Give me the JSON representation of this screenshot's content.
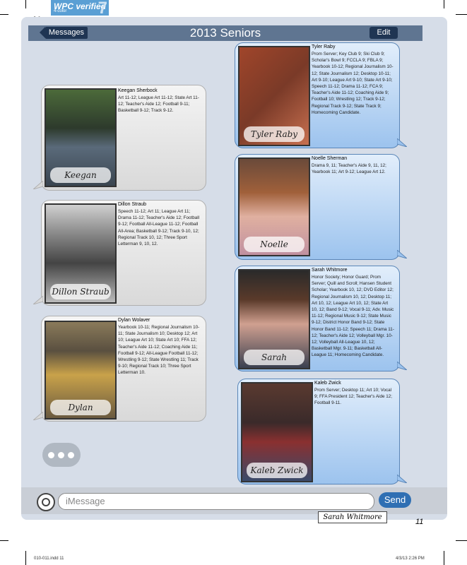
{
  "badge": {
    "line1": "WPC verified",
    "line2": "4-color",
    "number": "7"
  },
  "slug_letter": "W",
  "header": {
    "back_label": "Messages",
    "title": "2013 Seniors",
    "edit_label": "Edit"
  },
  "seniors": [
    {
      "name": "Keegan Sherbock",
      "signature": "Keegan Sherbock",
      "bubble": "gray",
      "details": "Art 11-12; League Art 11-12; State Art 11-12; Teacher's Aide 12; Football 9-11; Basketball 9-12; Track 9-12."
    },
    {
      "name": "Dillon Straub",
      "signature": "Dillon Straub",
      "bubble": "gray",
      "details": "Speech 11-12; Art 11; League Art 11; Drama 11-12; Teacher's Aide 12; Football 9-12; Football All-League 11-12; Football All-Area; Basketball 9-12; Track 9-10, 12; Regional Track 10, 12; Three Sport Letterman 9, 10, 12."
    },
    {
      "name": "Dylan Wolaver",
      "signature": "Dylan Wolaver",
      "bubble": "gray",
      "details": "Yearbook 10-11; Regional Journalism 10-11; State Journalism 10; Desktop 12; Art 10; League Art 10; State Art 10; FFA 12; Teacher's Aide 11-12; Coaching Aide 11; Football 9-12; All-League Football 11-12; Wrestling 9-12; State Wrestling 11; Track 9-10; Regional Track 10; Three Sport Letterman 10."
    },
    {
      "name": "Tyler Raby",
      "signature": "Tyler Raby",
      "bubble": "blue",
      "details": "Prom Server; Key Club 9; Ski Club 9; Scholar's Bowl 9; FCCLA 9; FBLA 9; Yearbook 10-12; Regional Journalism 10-12; State Journalism 12; Desktop 10-11; Art 9-10; League Art 9-10; State Art 9-10; Speech 11-12; Drama 11-12; FCA 9; Teacher's Aide 11-12; Coaching Aide 9; Football 10; Wrestling 12; Track 9-12; Regional Track 9-12; State Track 9; Homecoming Candidate."
    },
    {
      "name": "Noelle Sherman",
      "signature": "Noelle Sherman",
      "bubble": "blue",
      "details": "Drama 9, 11; Teacher's Aide 9, 11, 12; Yearbook 11; Art 9-12; League Art 12."
    },
    {
      "name": "Sarah Whitmore",
      "signature": "Sarah Whitmore",
      "bubble": "blue",
      "details": "Honor Society; Honor Guard; Prom Server; Quill and Scroll; Hansen Student Scholar; Yearbook 10, 12; DVD Editor 12; Regional Journalism 10, 12; Desktop 11; Art 10, 12; League Art 10, 12; State Art 10, 12; Band 9-12; Vocal 9-11; Adv. Music 11-12; Regional Music 9-12; State Music 9-12; District Honor Band 9-12; State Honor Band 11-12; Speech 11; Drama 11-12; Teacher's Aide 12; Volleyball Mgr. 10-12; Volleyball All-League 10, 12; Basketball Mgr. 9-11; Basketball All-League 11; Homecoming Candidate."
    },
    {
      "name": "Kaleb Zwick",
      "signature": "Kaleb Zwick",
      "bubble": "blue",
      "details": "Prom Server; Desktop 11; Art 10; Vocal 9; FFA President 12; Teacher's Aide 12; Football 9-11."
    }
  ],
  "composer": {
    "placeholder": "iMessage",
    "send_label": "Send"
  },
  "caption": "Sarah Whitmore",
  "page_number": "11",
  "slug": {
    "file": "010-011.indd   11",
    "date": "4/3/13   2:26 PM"
  }
}
